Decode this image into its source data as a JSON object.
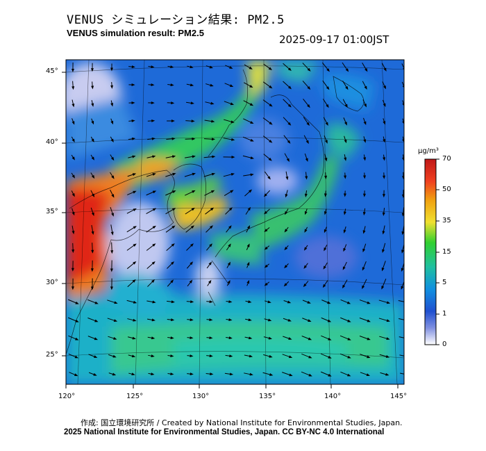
{
  "header": {
    "title_ja": "VENUS シミュレーション結果: PM2.5",
    "title_en": "VENUS simulation result: PM2.5",
    "datetime": "2025-09-17 01:00JST"
  },
  "map": {
    "lat_labels": [
      "45°",
      "40°",
      "35°",
      "30°",
      "25°"
    ],
    "lon_labels": [
      "120°",
      "125°",
      "130°",
      "135°",
      "140°",
      "145°"
    ]
  },
  "colorbar": {
    "unit": "μg/m³",
    "ticks": [
      "70",
      "50",
      "35",
      "15",
      "5",
      "1",
      "0"
    ],
    "colors": [
      "#e03020",
      "#f0a010",
      "#f0e030",
      "#30d030",
      "#20c0c0",
      "#2070e0",
      "#e0e0f0"
    ]
  },
  "credits": {
    "line1": "作成: 国立環境研究所 / Created by National Institute for Environmental Studies, Japan.",
    "line2": "2025 National Institute for Environmental Studies, Japan. CC BY-NC 4.0 International"
  }
}
